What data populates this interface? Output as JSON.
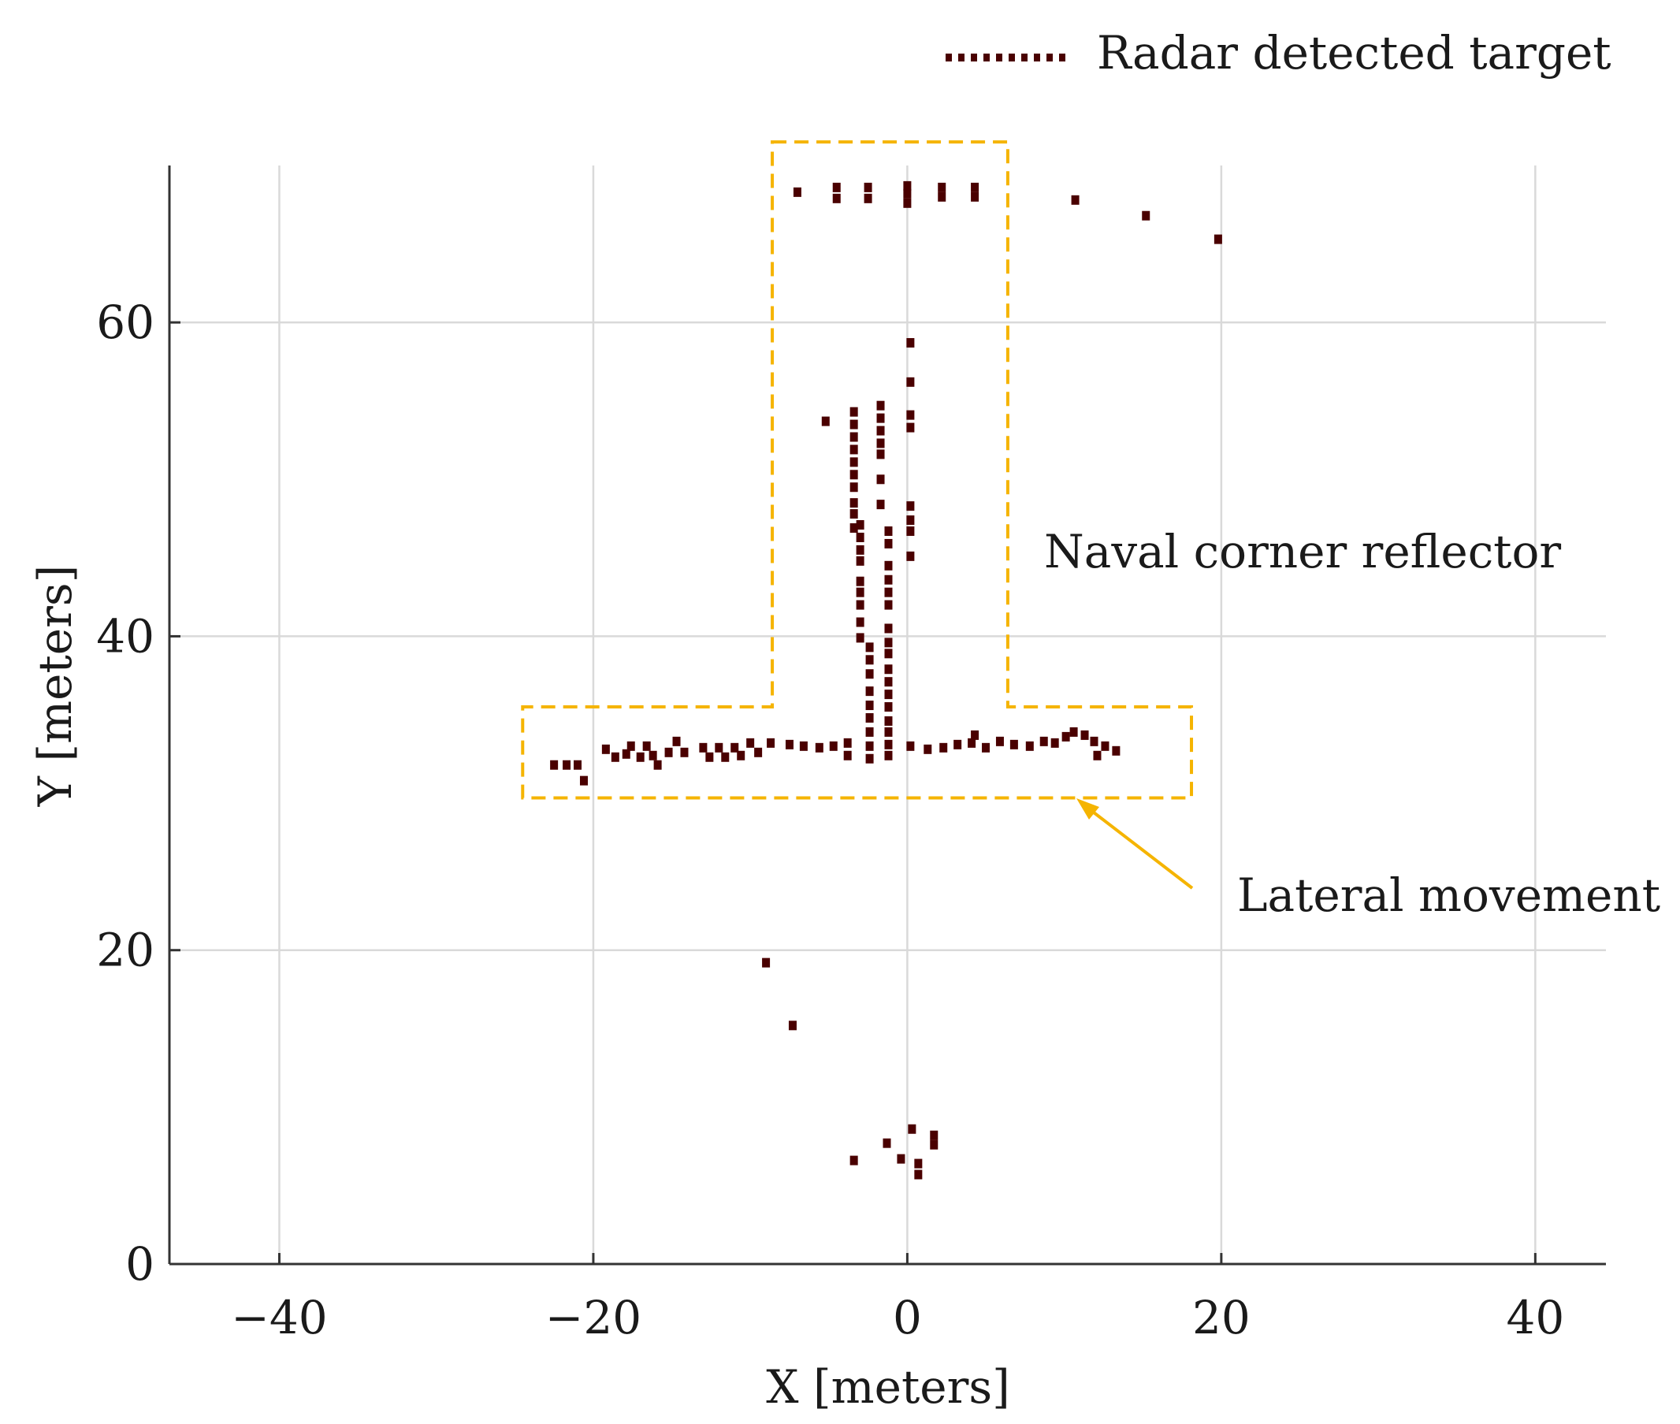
{
  "chart_data": {
    "type": "scatter",
    "xlabel": "X [meters]",
    "ylabel": "Y [meters]",
    "xlim": [
      -47,
      44.5
    ],
    "ylim": [
      0,
      70
    ],
    "grid": true,
    "x_ticks": [
      -40,
      -20,
      0,
      20,
      40
    ],
    "y_ticks": [
      0,
      20,
      40,
      60
    ],
    "x_tick_labels": [
      "−40",
      "−20",
      "0",
      "20",
      "40"
    ],
    "y_tick_labels": [
      "0",
      "20",
      "40",
      "60"
    ],
    "legend": {
      "position": "top-right",
      "entries": [
        {
          "label": "Radar detected target",
          "style": "dotted"
        }
      ]
    },
    "colors": {
      "points": "#4a0000",
      "highlight": "#f5b400",
      "grid": "#d9d9d9",
      "axis": "#333333"
    },
    "series": [
      {
        "name": "Radar detected target",
        "points": [
          [
            -7,
            68.3
          ],
          [
            -4.5,
            68.6
          ],
          [
            -4.5,
            67.9
          ],
          [
            -2.5,
            68.6
          ],
          [
            -2.5,
            67.9
          ],
          [
            0,
            68.7
          ],
          [
            0,
            68.2
          ],
          [
            0,
            67.6
          ],
          [
            2.2,
            68.6
          ],
          [
            2.2,
            68
          ],
          [
            4.3,
            68.6
          ],
          [
            4.3,
            68
          ],
          [
            10.7,
            67.8
          ],
          [
            15.2,
            66.8
          ],
          [
            19.8,
            65.3
          ],
          [
            0.2,
            58.7
          ],
          [
            0.2,
            56.2
          ],
          [
            0.2,
            54.1
          ],
          [
            0.2,
            53.3
          ],
          [
            -5.2,
            53.7
          ],
          [
            -3.4,
            54.3
          ],
          [
            -3.4,
            53.5
          ],
          [
            -3.4,
            52.7
          ],
          [
            -3.4,
            51.9
          ],
          [
            -3.4,
            51.1
          ],
          [
            -3.4,
            50.3
          ],
          [
            -3.4,
            49.5
          ],
          [
            -3.4,
            48.5
          ],
          [
            -3.4,
            47.8
          ],
          [
            -3.4,
            46.9
          ],
          [
            -1.7,
            54.7
          ],
          [
            -1.7,
            53.9
          ],
          [
            -1.7,
            53.1
          ],
          [
            -1.7,
            52.3
          ],
          [
            -1.7,
            51.6
          ],
          [
            -1.7,
            50
          ],
          [
            -1.7,
            48.4
          ],
          [
            0.2,
            48.3
          ],
          [
            0.2,
            47.4
          ],
          [
            0.2,
            46.7
          ],
          [
            0.2,
            45.1
          ],
          [
            -3,
            47.1
          ],
          [
            -3,
            46.3
          ],
          [
            -3,
            45.5
          ],
          [
            -3,
            44.8
          ],
          [
            -3,
            43.5
          ],
          [
            -3,
            42.8
          ],
          [
            -3,
            42
          ],
          [
            -3,
            40.9
          ],
          [
            -3,
            39.9
          ],
          [
            -1.2,
            46.7
          ],
          [
            -1.2,
            45.9
          ],
          [
            -1.2,
            44.5
          ],
          [
            -1.2,
            43.6
          ],
          [
            -1.2,
            42.8
          ],
          [
            -1.2,
            42
          ],
          [
            -1.2,
            40.5
          ],
          [
            -1.2,
            39.6
          ],
          [
            -1.2,
            38.9
          ],
          [
            -1.2,
            37.9
          ],
          [
            -1.2,
            37.1
          ],
          [
            -1.2,
            36.3
          ],
          [
            -1.2,
            35.5
          ],
          [
            -1.2,
            34.6
          ],
          [
            -1.2,
            33.9
          ],
          [
            -1.2,
            33.1
          ],
          [
            -1.2,
            32.4
          ],
          [
            -2.4,
            39.3
          ],
          [
            -2.4,
            38.5
          ],
          [
            -2.4,
            37.6
          ],
          [
            -2.4,
            36.5
          ],
          [
            -2.4,
            35.6
          ],
          [
            -2.4,
            34.8
          ],
          [
            -2.4,
            33.9
          ],
          [
            -2.4,
            33
          ],
          [
            -2.4,
            32.2
          ],
          [
            -22.5,
            31.8
          ],
          [
            -21.7,
            31.8
          ],
          [
            -21,
            31.8
          ],
          [
            -20.6,
            30.8
          ],
          [
            -19.2,
            32.8
          ],
          [
            -18.6,
            32.3
          ],
          [
            -17.9,
            32.5
          ],
          [
            -17.6,
            33
          ],
          [
            -17,
            32.3
          ],
          [
            -16.6,
            33
          ],
          [
            -16.2,
            32.4
          ],
          [
            -15.9,
            31.8
          ],
          [
            -15.2,
            32.6
          ],
          [
            -14.7,
            33.3
          ],
          [
            -14.2,
            32.6
          ],
          [
            -13,
            32.9
          ],
          [
            -12.6,
            32.3
          ],
          [
            -12,
            32.9
          ],
          [
            -11.6,
            32.3
          ],
          [
            -11,
            32.9
          ],
          [
            -10.6,
            32.4
          ],
          [
            -10,
            33.2
          ],
          [
            -9.5,
            32.6
          ],
          [
            -8.7,
            33.2
          ],
          [
            -7.5,
            33.1
          ],
          [
            -6.6,
            33
          ],
          [
            -5.6,
            32.9
          ],
          [
            -4.7,
            33
          ],
          [
            -3.8,
            33.2
          ],
          [
            -3.8,
            32.4
          ],
          [
            0.2,
            33
          ],
          [
            1.3,
            32.8
          ],
          [
            2.3,
            32.9
          ],
          [
            3.2,
            33.1
          ],
          [
            4.1,
            33.2
          ],
          [
            4.3,
            33.7
          ],
          [
            5,
            32.9
          ],
          [
            5.9,
            33.3
          ],
          [
            6.8,
            33.1
          ],
          [
            7.8,
            33
          ],
          [
            8.7,
            33.3
          ],
          [
            9.4,
            33.2
          ],
          [
            10.1,
            33.6
          ],
          [
            10.6,
            33.9
          ],
          [
            11.3,
            33.7
          ],
          [
            11.9,
            33.3
          ],
          [
            12.1,
            32.4
          ],
          [
            12.6,
            33
          ],
          [
            13.3,
            32.7
          ],
          [
            -9,
            19.2
          ],
          [
            -7.3,
            15.2
          ],
          [
            0.3,
            8.6
          ],
          [
            1.7,
            8.2
          ],
          [
            1.7,
            7.6
          ],
          [
            -1.3,
            7.7
          ],
          [
            -3.4,
            6.6
          ],
          [
            -0.4,
            6.7
          ],
          [
            0.7,
            6.4
          ],
          [
            0.7,
            5.7
          ]
        ]
      }
    ],
    "annotations": [
      {
        "text": "Naval corner reflector",
        "box_x": [
          -8.6,
          6.4
        ],
        "box_y": [
          35.5,
          71.5
        ]
      },
      {
        "text": "Lateral movement",
        "box_x": [
          -24.5,
          18.1
        ],
        "box_y": [
          29.7,
          35.5
        ],
        "arrow_to": [
          10.8,
          29.7
        ]
      }
    ]
  }
}
